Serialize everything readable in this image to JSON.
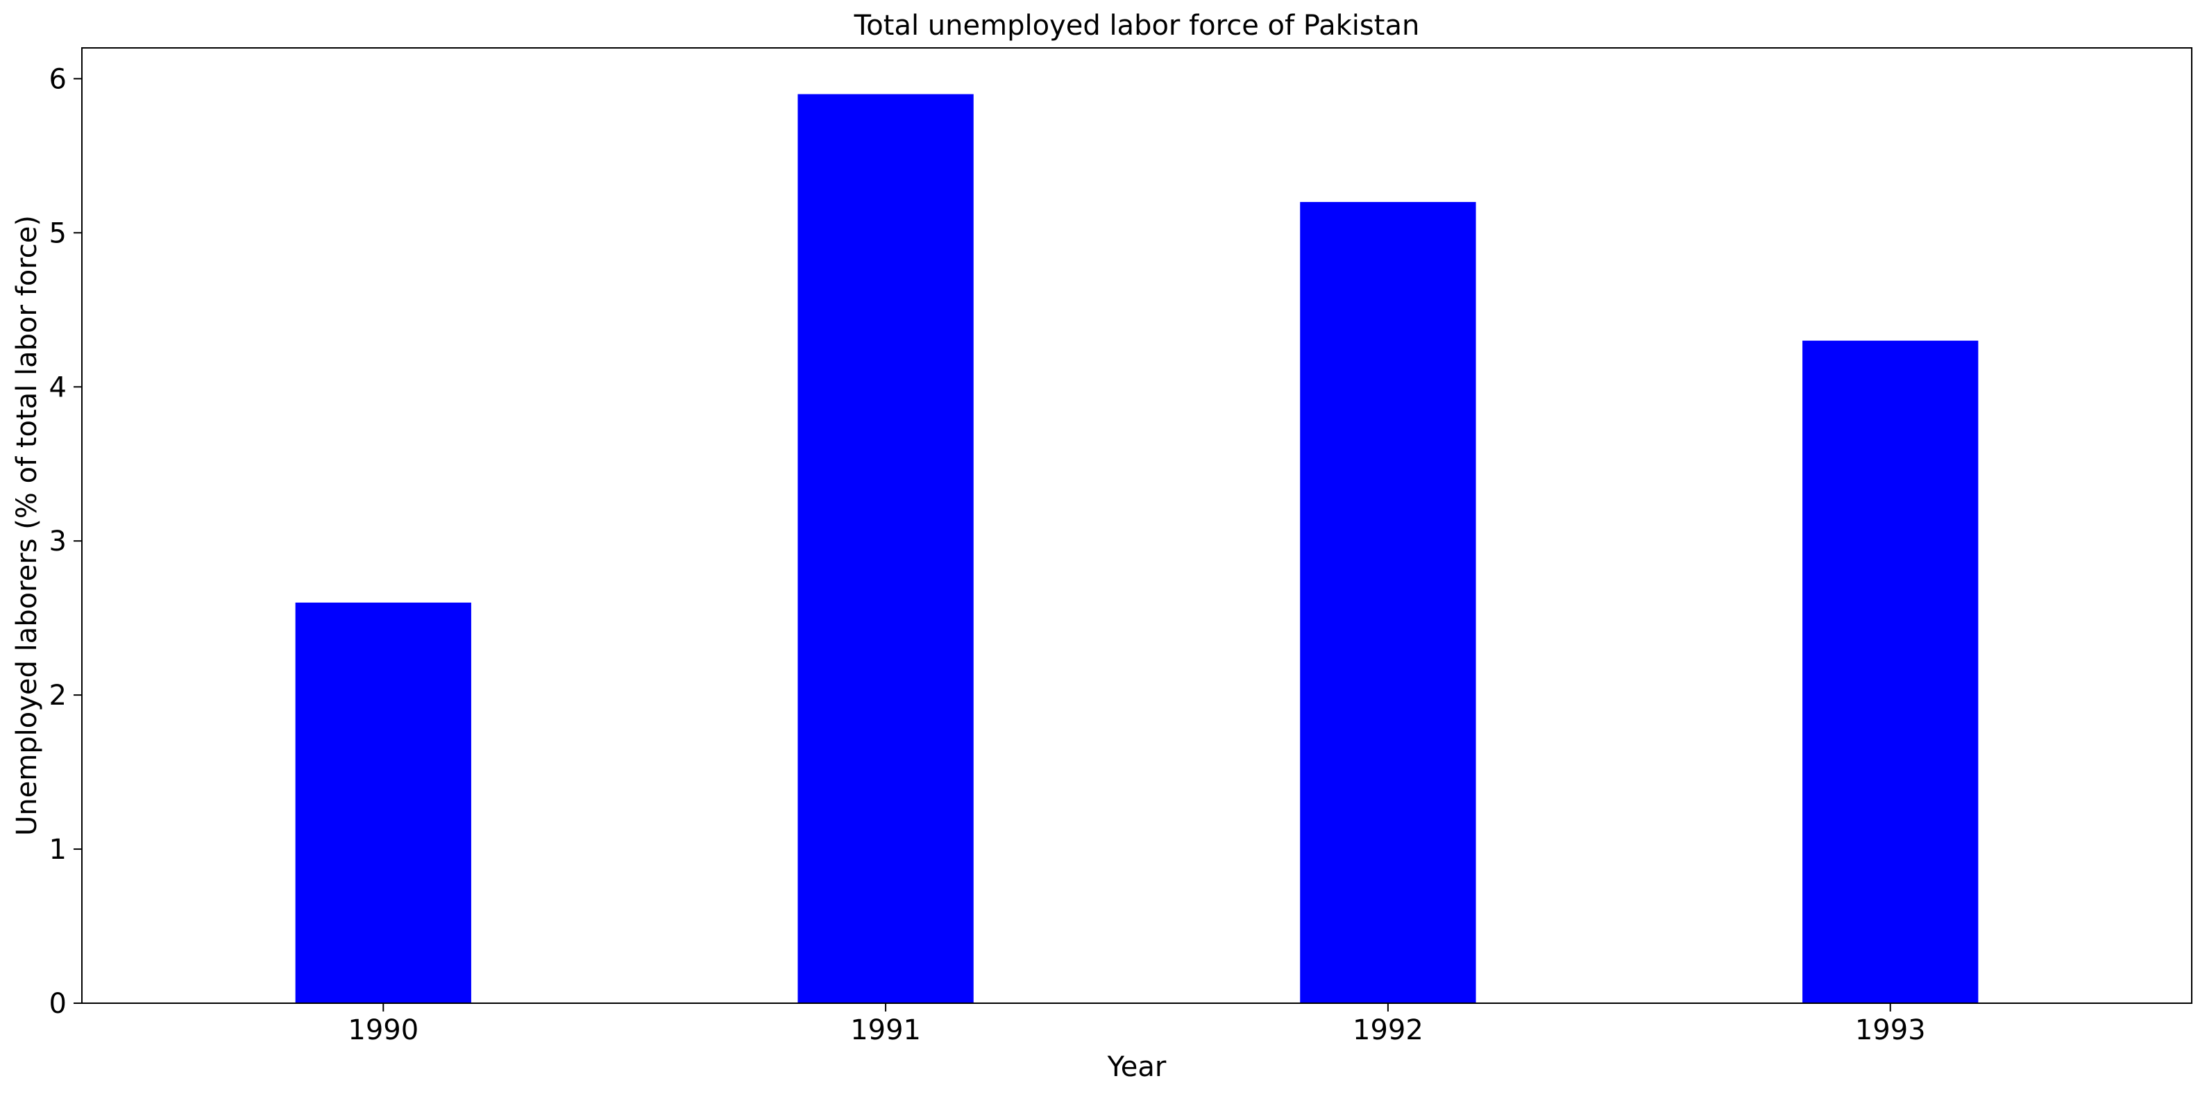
{
  "chart_data": {
    "type": "bar",
    "title": "Total unemployed labor force of Pakistan",
    "xlabel": "Year",
    "ylabel": "Unemployed laborers (% of total labor force)",
    "categories": [
      "1990",
      "1991",
      "1992",
      "1993"
    ],
    "values": [
      2.6,
      5.9,
      5.2,
      4.3
    ],
    "ylim": [
      0,
      6.2
    ],
    "yticks": [
      0,
      1,
      2,
      3,
      4,
      5,
      6
    ],
    "bar_color": "#0000ff",
    "grid": false,
    "legend": "none"
  }
}
